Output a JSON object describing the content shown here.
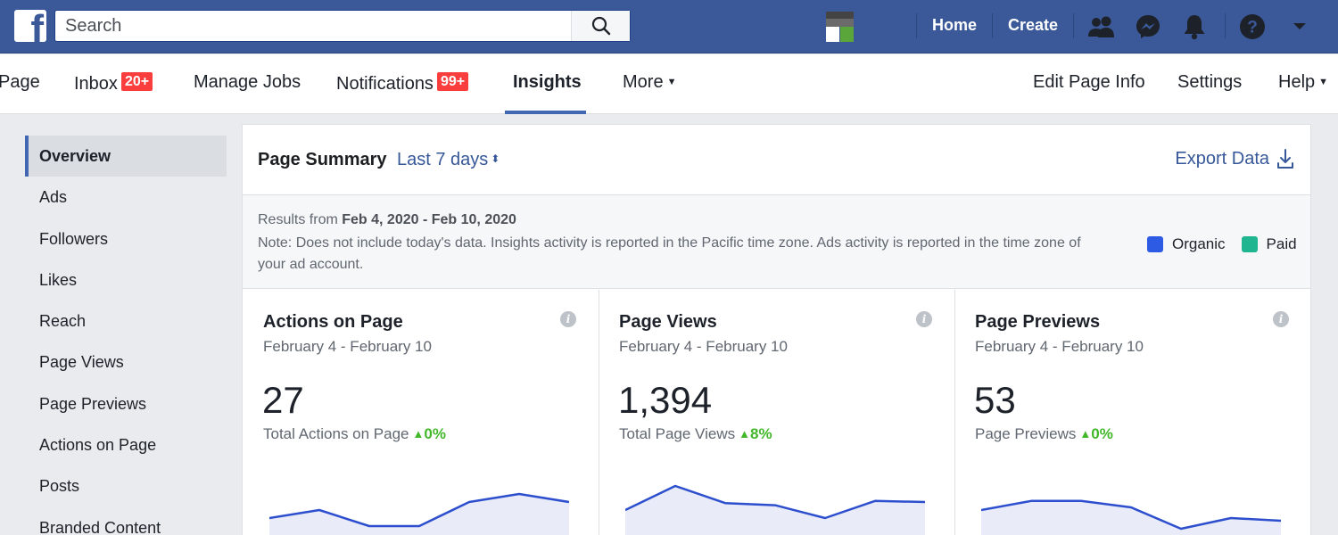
{
  "topbar": {
    "search_placeholder": "Search",
    "home": "Home",
    "create": "Create"
  },
  "subnav": {
    "page": "Page",
    "inbox": "Inbox",
    "inbox_badge": "20+",
    "manage_jobs": "Manage Jobs",
    "notifications": "Notifications",
    "notifications_badge": "99+",
    "insights": "Insights",
    "more": "More",
    "edit_page_info": "Edit Page Info",
    "settings": "Settings",
    "help": "Help"
  },
  "sidebar": {
    "items": [
      "Overview",
      "Ads",
      "Followers",
      "Likes",
      "Reach",
      "Page Views",
      "Page Previews",
      "Actions on Page",
      "Posts",
      "Branded Content"
    ],
    "active": "Overview"
  },
  "summary": {
    "title": "Page Summary",
    "range": "Last 7 days",
    "export": "Export Data",
    "results_prefix": "Results from",
    "results_dates": "Feb 4, 2020 - Feb 10, 2020",
    "note": "Note: Does not include today's data. Insights activity is reported in the Pacific time zone. Ads activity is reported in the time zone of your ad account.",
    "legend": [
      {
        "label": "Organic",
        "color": "#2d5be3"
      },
      {
        "label": "Paid",
        "color": "#20b591"
      }
    ]
  },
  "metrics": [
    {
      "title": "Actions on Page",
      "range": "February 4 - February 10",
      "value": "27",
      "sub": "Total Actions on Page",
      "delta": "0%",
      "trend": [
        0.4,
        0.55,
        0.25,
        0.25,
        0.7,
        0.85,
        0.7
      ]
    },
    {
      "title": "Page Views",
      "range": "February 4 - February 10",
      "value": "1,394",
      "sub": "Total Page Views",
      "delta": "8%",
      "trend": [
        0.55,
        1.0,
        0.68,
        0.64,
        0.4,
        0.72,
        0.7
      ]
    },
    {
      "title": "Page Previews",
      "range": "February 4 - February 10",
      "value": "53",
      "sub": "Page Previews",
      "delta": "0%",
      "trend": [
        0.55,
        0.72,
        0.72,
        0.6,
        0.2,
        0.4,
        0.35
      ]
    }
  ],
  "colors": {
    "brand": "#3b5998",
    "link": "#365899",
    "positive": "#42b72a",
    "badge": "#fa3e3e",
    "spark_line": "#2d4fce",
    "spark_fill": "#e9ecf8"
  }
}
